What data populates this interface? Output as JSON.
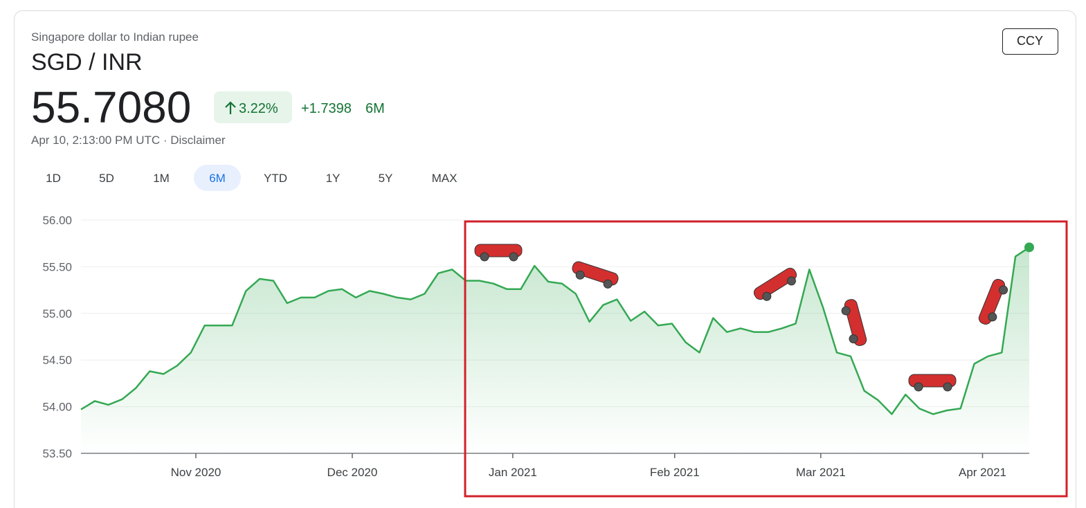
{
  "header": {
    "subtitle": "Singapore dollar to Indian rupee",
    "pair": "SGD / INR",
    "price": "55.7080",
    "change_pct": "3.22%",
    "change_abs": "+1.7398",
    "period": "6M",
    "timestamp": "Apr 10, 2:13:00 PM UTC · Disclaimer",
    "badge": "CCY"
  },
  "ranges": {
    "labels": [
      "1D",
      "5D",
      "1M",
      "6M",
      "YTD",
      "1Y",
      "5Y",
      "MAX"
    ],
    "selected": 3
  },
  "chart_data": {
    "type": "line",
    "color": "#34a853",
    "grid": true,
    "values": [
      53.97,
      54.06,
      54.02,
      54.08,
      54.2,
      54.38,
      54.35,
      54.44,
      54.58,
      54.87,
      54.87,
      54.87,
      55.24,
      55.37,
      55.35,
      55.11,
      55.17,
      55.17,
      55.24,
      55.26,
      55.17,
      55.24,
      55.21,
      55.17,
      55.15,
      55.21,
      55.43,
      55.47,
      55.35,
      55.35,
      55.32,
      55.26,
      55.26,
      55.51,
      55.34,
      55.32,
      55.21,
      54.91,
      55.09,
      55.15,
      54.92,
      55.02,
      54.87,
      54.89,
      54.69,
      54.58,
      54.95,
      54.8,
      54.84,
      54.8,
      54.8,
      54.84,
      54.89,
      55.47,
      55.06,
      54.58,
      54.54,
      54.17,
      54.07,
      53.92,
      54.13,
      53.98,
      53.92,
      53.96,
      53.98,
      54.46,
      54.54,
      54.58,
      55.61,
      55.708
    ],
    "xlim": [
      0,
      69
    ],
    "xticks": [
      {
        "value": 8.36,
        "label": "Nov 2020"
      },
      {
        "value": 19.74,
        "label": "Dec 2020"
      },
      {
        "value": 31.42,
        "label": "Jan 2021"
      },
      {
        "value": 43.2,
        "label": "Feb 2021"
      },
      {
        "value": 53.83,
        "label": "Mar 2021"
      },
      {
        "value": 65.6,
        "label": "Apr 2021"
      }
    ],
    "ylim": [
      53.5,
      56
    ],
    "yticks": [
      {
        "value": 53.5,
        "label": "53.50"
      },
      {
        "value": 54,
        "label": "54.00"
      },
      {
        "value": 54.5,
        "label": "54.50"
      },
      {
        "value": 55,
        "label": "55.00"
      },
      {
        "value": 55.5,
        "label": "55.50"
      },
      {
        "value": 56,
        "label": "56.00"
      }
    ]
  }
}
